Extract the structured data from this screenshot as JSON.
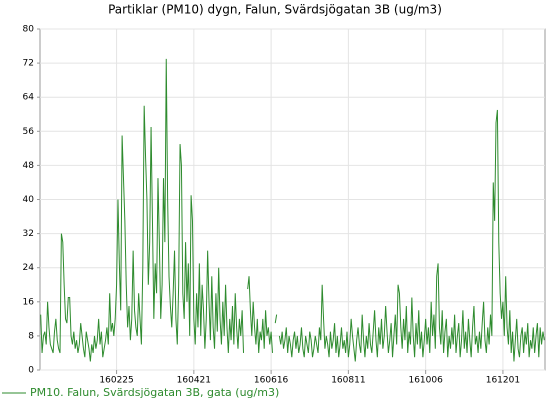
{
  "chart_data": {
    "type": "line",
    "title": "Partiklar (PM10) dygn, Falun, Svärdsjögatan 3B (ug/m3)",
    "categories": [
      null,
      null,
      null,
      null,
      null,
      null,
      null,
      null,
      null,
      null,
      null,
      null,
      null,
      null,
      null,
      null,
      null,
      null,
      null,
      null,
      null,
      null,
      null,
      null,
      null,
      null,
      null,
      null,
      null,
      null,
      null,
      null,
      null,
      null,
      null,
      null,
      null,
      null,
      null,
      null,
      null,
      null,
      null,
      null,
      null,
      null,
      null,
      null,
      null,
      null,
      null,
      null,
      null,
      null,
      null,
      "160225",
      null,
      null,
      null,
      null,
      null,
      null,
      null,
      null,
      null,
      null,
      null,
      null,
      null,
      null,
      null,
      null,
      null,
      null,
      null,
      null,
      null,
      null,
      null,
      null,
      null,
      null,
      null,
      null,
      null,
      null,
      null,
      null,
      null,
      null,
      null,
      null,
      null,
      null,
      null,
      null,
      null,
      null,
      null,
      null,
      null,
      null,
      null,
      null,
      null,
      null,
      null,
      null,
      null,
      null,
      null,
      "160421",
      null,
      null,
      null,
      null,
      null,
      null,
      null,
      null,
      null,
      null,
      null,
      null,
      null,
      null,
      null,
      null,
      null,
      null,
      null,
      null,
      null,
      null,
      null,
      null,
      null,
      null,
      null,
      null,
      null,
      null,
      null,
      null,
      null,
      null,
      null,
      null,
      null,
      null,
      null,
      null,
      null,
      null,
      null,
      null,
      null,
      null,
      null,
      null,
      null,
      null,
      null,
      null,
      null,
      null,
      null,
      "160616",
      null,
      null,
      null,
      null,
      null,
      null,
      null,
      null,
      null,
      null,
      null,
      null,
      null,
      null,
      null,
      null,
      null,
      null,
      null,
      null,
      null,
      null,
      null,
      null,
      null,
      null,
      null,
      null,
      null,
      null,
      null,
      null,
      null,
      null,
      null,
      null,
      null,
      null,
      null,
      null,
      null,
      null,
      null,
      null,
      null,
      null,
      null,
      null,
      null,
      null,
      null,
      null,
      null,
      null,
      null,
      "160811",
      null,
      null,
      null,
      null,
      null,
      null,
      null,
      null,
      null,
      null,
      null,
      null,
      null,
      null,
      null,
      null,
      null,
      null,
      null,
      null,
      null,
      null,
      null,
      null,
      null,
      null,
      null,
      null,
      null,
      null,
      null,
      null,
      null,
      null,
      null,
      null,
      null,
      null,
      null,
      null,
      null,
      null,
      null,
      null,
      null,
      null,
      null,
      null,
      null,
      null,
      null,
      null,
      null,
      null,
      null,
      "161006",
      null,
      null,
      null,
      null,
      null,
      null,
      null,
      null,
      null,
      null,
      null,
      null,
      null,
      null,
      null,
      null,
      null,
      null,
      null,
      null,
      null,
      null,
      null,
      null,
      null,
      null,
      null,
      null,
      null,
      null,
      null,
      null,
      null,
      null,
      null,
      null,
      null,
      null,
      null,
      null,
      null,
      null,
      null,
      null,
      null,
      null,
      null,
      null,
      null,
      null,
      null,
      null,
      null,
      null,
      null,
      "161201",
      null,
      null,
      null,
      null,
      null,
      null,
      null,
      null,
      null,
      null,
      null,
      null,
      null,
      null,
      null,
      null,
      null,
      null,
      null,
      null,
      null,
      null,
      null,
      null,
      null,
      null,
      null,
      null,
      null,
      null
    ],
    "series": [
      {
        "name": "PM10. Falun, Svärdsjögatan 3B, gata (ug/m3)",
        "color": "#2e8b2e",
        "values": [
          13,
          4,
          8,
          9,
          6,
          16,
          10,
          6,
          5,
          4,
          9,
          12,
          7,
          5,
          4,
          32,
          30,
          20,
          12,
          11,
          17,
          17,
          8,
          6,
          9,
          5,
          7,
          4,
          6,
          11,
          8,
          5,
          3,
          9,
          7,
          5,
          2,
          6,
          4,
          8,
          5,
          7,
          12,
          6,
          9,
          3,
          5,
          7,
          10,
          6,
          18,
          9,
          11,
          8,
          12,
          20,
          40,
          25,
          14,
          55,
          45,
          35,
          20,
          10,
          15,
          7,
          12,
          28,
          14,
          10,
          8,
          18,
          12,
          6,
          24,
          62,
          50,
          40,
          20,
          30,
          57,
          35,
          12,
          25,
          18,
          45,
          30,
          12,
          20,
          45,
          30,
          73,
          40,
          22,
          15,
          10,
          18,
          28,
          12,
          6,
          20,
          53,
          48,
          18,
          12,
          30,
          16,
          25,
          8,
          41,
          35,
          12,
          6,
          18,
          10,
          25,
          8,
          20,
          14,
          5,
          12,
          28,
          16,
          7,
          22,
          10,
          5,
          18,
          9,
          24,
          12,
          6,
          16,
          8,
          20,
          10,
          4,
          12,
          7,
          15,
          6,
          18,
          10,
          5,
          12,
          8,
          14,
          4,
          null,
          null,
          19,
          22,
          14,
          8,
          16,
          10,
          6,
          12,
          4,
          9,
          7,
          12,
          5,
          14,
          8,
          10,
          6,
          9,
          4,
          null,
          11,
          13,
          null,
          8,
          6,
          9,
          5,
          7,
          10,
          4,
          8,
          6,
          3,
          7,
          9,
          5,
          8,
          4,
          6,
          10,
          5,
          3,
          8,
          6,
          4,
          9,
          7,
          3,
          5,
          8,
          6,
          4,
          10,
          7,
          20,
          12,
          5,
          8,
          6,
          3,
          9,
          5,
          7,
          11,
          4,
          8,
          3,
          6,
          10,
          5,
          7,
          4,
          9,
          3,
          6,
          12,
          8,
          5,
          2,
          7,
          10,
          6,
          4,
          13,
          7,
          3,
          8,
          5,
          11,
          6,
          4,
          9,
          14,
          7,
          3,
          10,
          6,
          12,
          5,
          8,
          15,
          9,
          4,
          7,
          11,
          3,
          8,
          13,
          6,
          20,
          18,
          10,
          5,
          12,
          7,
          15,
          4,
          9,
          6,
          17,
          8,
          3,
          11,
          6,
          14,
          5,
          9,
          3,
          7,
          12,
          6,
          10,
          4,
          16,
          8,
          13,
          5,
          22,
          25,
          10,
          6,
          14,
          4,
          9,
          12,
          3,
          8,
          5,
          10,
          6,
          13,
          4,
          8,
          11,
          3,
          7,
          14,
          5,
          9,
          4,
          12,
          7,
          3,
          10,
          15,
          6,
          8,
          4,
          9,
          5,
          11,
          16,
          7,
          4,
          10,
          6,
          13,
          8,
          44,
          35,
          58,
          61,
          30,
          18,
          12,
          16,
          8,
          22,
          10,
          6,
          14,
          4,
          9,
          2,
          7,
          12,
          5,
          3,
          8,
          10,
          4,
          9,
          6,
          11,
          3,
          7,
          5,
          10,
          4,
          8,
          11,
          3,
          10,
          6,
          9,
          7
        ]
      }
    ],
    "ylim": [
      0,
      80
    ],
    "yticks": [
      0,
      8,
      16,
      24,
      32,
      40,
      48,
      56,
      64,
      72,
      80
    ],
    "grid": true
  }
}
